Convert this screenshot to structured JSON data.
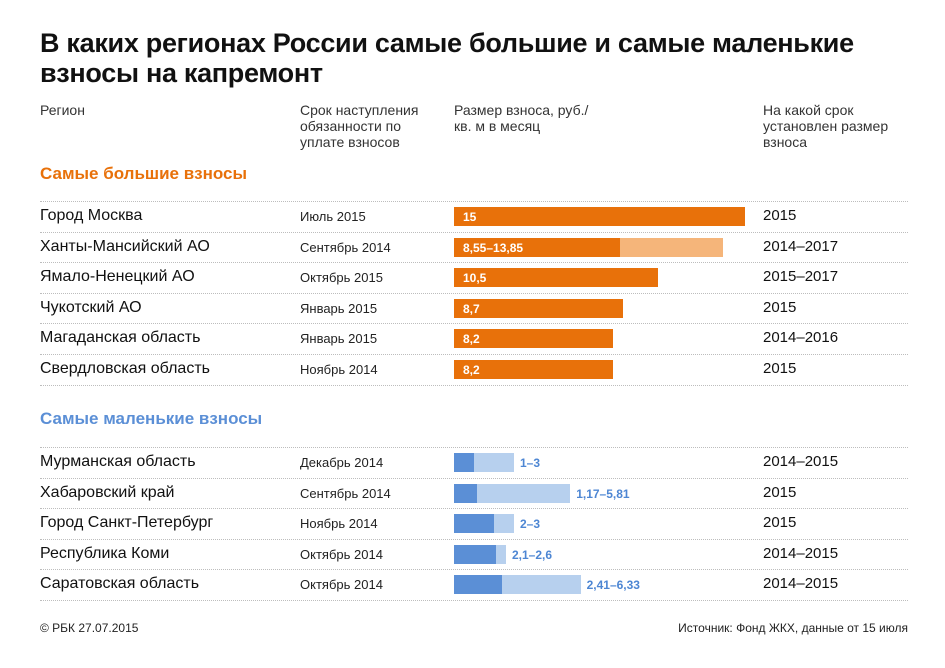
{
  "title": "В каких регионах России самые большие и самые маленькие взносы на капремонт",
  "columns": {
    "region": "Регион",
    "start": "Срок наступления обязанности по уплате взносов",
    "amount": "Размер взноса, руб./кв. м в месяц",
    "period": "На какой срок установлен размер взноса"
  },
  "sections": {
    "largest": "Самые большие взносы",
    "smallest": "Самые маленькие взносы"
  },
  "colors": {
    "large_main": "#e8710a",
    "large_range": "#f5b57a",
    "small_main": "#5b8fd6",
    "small_range": "#b7d0ee",
    "large_heading": "#e8710a",
    "small_heading": "#5b8fd6"
  },
  "chart_data": {
    "type": "bar",
    "orientation": "horizontal",
    "x_unit": "руб./кв. м в месяц",
    "groups": [
      {
        "name": "Самые большие взносы",
        "rows": [
          {
            "region": "Город Москва",
            "start": "Июль 2015",
            "label": "15",
            "min": 15,
            "max": 15,
            "period": "2015"
          },
          {
            "region": "Ханты-Мансийский АО",
            "start": "Сентябрь 2014",
            "label": "8,55–13,85",
            "min": 8.55,
            "max": 13.85,
            "period": "2014–2017"
          },
          {
            "region": "Ямало-Ненецкий АО",
            "start": "Октябрь 2015",
            "label": "10,5",
            "min": 10.5,
            "max": 10.5,
            "period": "2015–2017"
          },
          {
            "region": "Чукотский АО",
            "start": "Январь 2015",
            "label": "8,7",
            "min": 8.7,
            "max": 8.7,
            "period": "2015"
          },
          {
            "region": "Магаданская область",
            "start": "Январь 2015",
            "label": "8,2",
            "min": 8.2,
            "max": 8.2,
            "period": "2014–2016"
          },
          {
            "region": "Свердловская область",
            "start": "Ноябрь 2014",
            "label": "8,2",
            "min": 8.2,
            "max": 8.2,
            "period": "2015"
          }
        ]
      },
      {
        "name": "Самые маленькие взносы",
        "rows": [
          {
            "region": "Мурманская область",
            "start": "Декабрь 2014",
            "label": "1–3",
            "min": 1,
            "max": 3,
            "period": "2014–2015"
          },
          {
            "region": "Хабаровский край",
            "start": "Сентябрь 2014",
            "label": "1,17–5,81",
            "min": 1.17,
            "max": 5.81,
            "period": "2015"
          },
          {
            "region": "Город Санкт-Петербург",
            "start": "Ноябрь 2014",
            "label": "2–3",
            "min": 2,
            "max": 3,
            "period": "2015"
          },
          {
            "region": "Республика Коми",
            "start": "Октябрь 2014",
            "label": "2,1–2,6",
            "min": 2.1,
            "max": 2.6,
            "period": "2014–2015"
          },
          {
            "region": "Саратовская область",
            "start": "Октябрь 2014",
            "label": "2,41–6,33",
            "min": 2.41,
            "max": 6.33,
            "period": "2014–2015"
          }
        ]
      }
    ]
  },
  "footer": {
    "copyright": "© РБК 27.07.2015",
    "source": "Источник: Фонд ЖКХ, данные от 15 июля"
  }
}
